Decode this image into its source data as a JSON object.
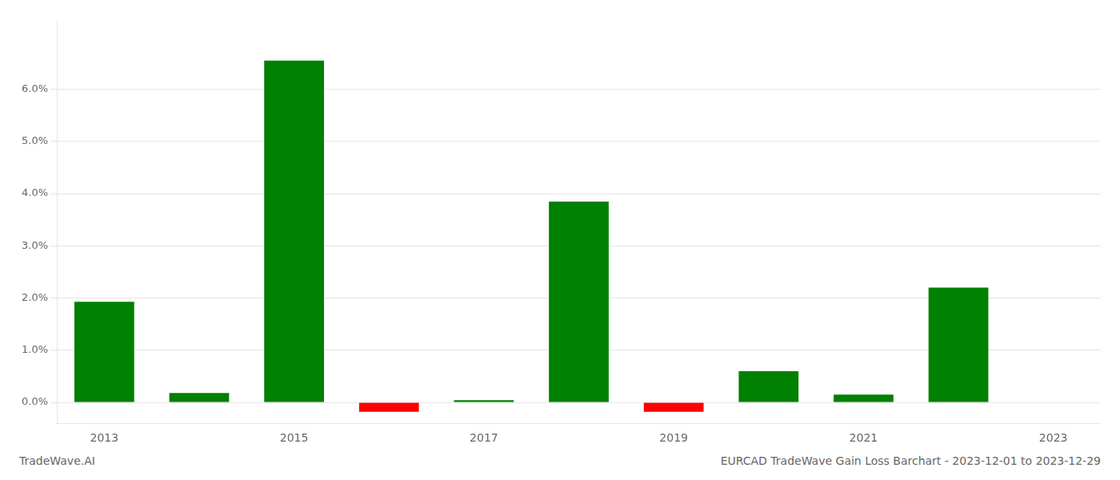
{
  "chart_data": {
    "type": "bar",
    "categories": [
      "2013",
      null,
      "2015",
      null,
      "2017",
      null,
      "2019",
      null,
      "2021",
      null,
      "2023"
    ],
    "values": [
      0.0193,
      0.0018,
      0.0655,
      -0.0018,
      0.00045,
      0.0385,
      -0.0018,
      0.006,
      0.0015,
      0.022,
      0.0
    ],
    "colors": [
      "#008000",
      "#008000",
      "#008000",
      "#ff0000",
      "#008000",
      "#008000",
      "#ff0000",
      "#008000",
      "#008000",
      "#008000",
      "#008000"
    ],
    "ylim": [
      -0.004,
      0.073
    ],
    "yticks": [
      {
        "value": 0.0,
        "label": "0.0%"
      },
      {
        "value": 0.01,
        "label": "1.0%"
      },
      {
        "value": 0.02,
        "label": "2.0%"
      },
      {
        "value": 0.03,
        "label": "3.0%"
      },
      {
        "value": 0.04,
        "label": "4.0%"
      },
      {
        "value": 0.05,
        "label": "5.0%"
      },
      {
        "value": 0.06,
        "label": "6.0%"
      }
    ],
    "grid": true,
    "annotations": [
      "TradeWave.AI",
      "EURCAD TradeWave Gain Loss Barchart - 2023-12-01 to 2023-12-29"
    ]
  }
}
